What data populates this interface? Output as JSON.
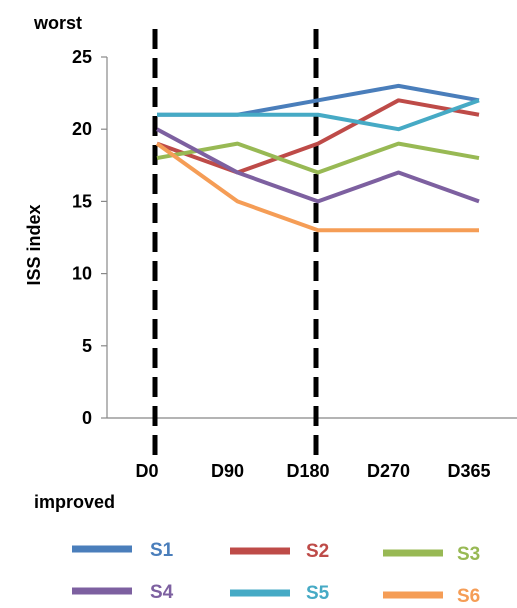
{
  "chart_data": {
    "type": "line",
    "title": "",
    "xlabel": "",
    "ylabel": "ISS index",
    "top_annotation": "worst",
    "bottom_annotation": "improved",
    "categories": [
      "D0",
      "D90",
      "D180",
      "D270",
      "D365"
    ],
    "ylim": [
      0,
      25
    ],
    "yticks": [
      0,
      5,
      10,
      15,
      20,
      25
    ],
    "grid": false,
    "legend_position": "bottom",
    "vertical_markers": [
      "D0",
      "D180"
    ],
    "series": [
      {
        "name": "S1",
        "color": "#4a7ebb",
        "values": [
          21,
          21,
          22,
          23,
          22
        ]
      },
      {
        "name": "S2",
        "color": "#be4b48",
        "values": [
          19,
          17,
          19,
          22,
          21
        ]
      },
      {
        "name": "S3",
        "color": "#98b954",
        "values": [
          18,
          19,
          17,
          19,
          18
        ]
      },
      {
        "name": "S4",
        "color": "#7d60a0",
        "values": [
          20,
          17,
          15,
          17,
          15
        ]
      },
      {
        "name": "S5",
        "color": "#46aac5",
        "values": [
          21,
          21,
          21,
          20,
          22
        ]
      },
      {
        "name": "S6",
        "color": "#f59d56",
        "values": [
          19,
          15,
          13,
          13,
          13
        ]
      }
    ]
  }
}
